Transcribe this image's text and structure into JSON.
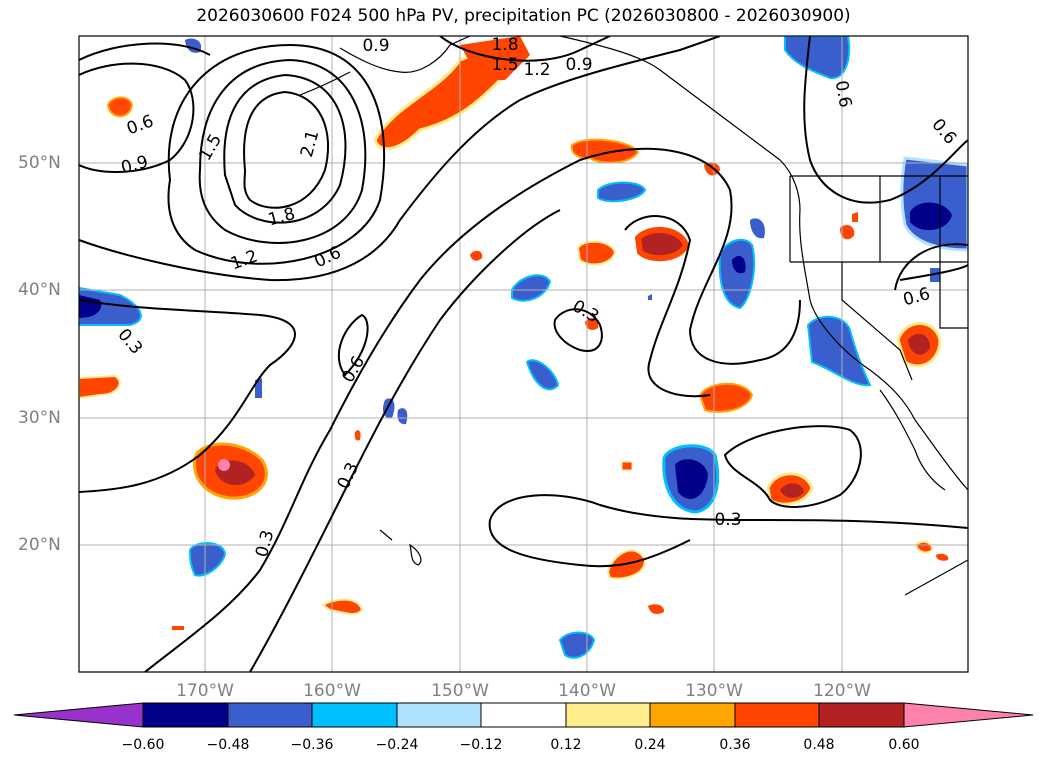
{
  "title": "2026030600 F024 500 hPa PV, precipitation PC (2026030800 - 2026030900)",
  "lat_labels": [
    "50°N",
    "40°N",
    "30°N",
    "20°N"
  ],
  "lon_labels": [
    "170°W",
    "160°W",
    "150°W",
    "140°W",
    "130°W",
    "120°W"
  ],
  "contour_labels": [
    "0.9",
    "1.8",
    "1.5",
    "1.2",
    "0.9",
    "0.6",
    "0.9",
    "1.5",
    "2.1",
    "1.8",
    "1.2",
    "0.6",
    "0.3",
    "0.6",
    "0.3",
    "0.3",
    "0.3",
    "0.3",
    "0.6",
    "0.6",
    "0.6"
  ],
  "colorbar": {
    "ticks": [
      "−0.60",
      "−0.48",
      "−0.36",
      "−0.24",
      "−0.12",
      "0.12",
      "0.24",
      "0.36",
      "0.48",
      "0.60"
    ],
    "colors": [
      "#9932cc",
      "#00008b",
      "#3a5fcd",
      "#00bfff",
      "#b0e2ff",
      "#ffffff",
      "#ffec8b",
      "#ffa500",
      "#ff4500",
      "#b22222",
      "#ff82ab"
    ]
  }
}
